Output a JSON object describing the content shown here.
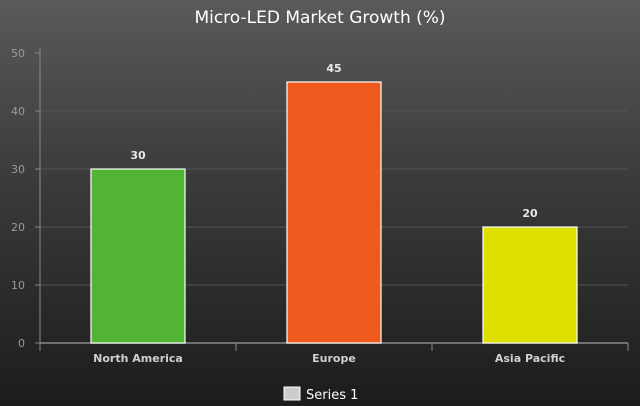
{
  "chart_data": {
    "type": "bar",
    "title": "Micro-LED Market Growth (%)",
    "categories": [
      "North America",
      "Europe",
      "Asia Pacific"
    ],
    "series": [
      {
        "name": "Series 1",
        "values": [
          30,
          45,
          20
        ]
      }
    ],
    "bar_colors": [
      "#52b433",
      "#ee5a1d",
      "#e0e000"
    ],
    "legend_color": "#cccccc",
    "ylim": [
      0,
      50
    ],
    "yticks": [
      0,
      10,
      20,
      30,
      40,
      50
    ],
    "grid": true,
    "legend_position": "bottom",
    "data_labels": true
  }
}
